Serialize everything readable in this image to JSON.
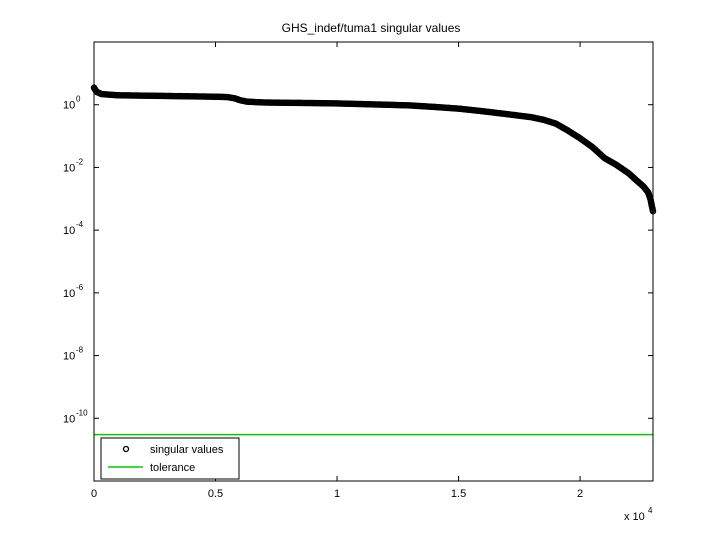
{
  "chart_data": {
    "type": "scatter",
    "title": "GHS_indef/tuma1 singular values",
    "xlabel": "",
    "ylabel": "",
    "y_scale": "log",
    "xlim": [
      0,
      23000
    ],
    "ylim": [
      1e-12,
      100.0
    ],
    "x_ticks": [
      {
        "value": 0,
        "label": "0"
      },
      {
        "value": 5000,
        "label": "0.5"
      },
      {
        "value": 10000,
        "label": "1"
      },
      {
        "value": 15000,
        "label": "1.5"
      },
      {
        "value": 20000,
        "label": "2"
      }
    ],
    "x_multiplier": {
      "base": "x 10",
      "exp": "4"
    },
    "y_ticks": [
      {
        "value": 1,
        "base": "10",
        "exp": "0"
      },
      {
        "value": 0.01,
        "base": "10",
        "exp": "-2"
      },
      {
        "value": 0.0001,
        "base": "10",
        "exp": "-4"
      },
      {
        "value": 1e-06,
        "base": "10",
        "exp": "-6"
      },
      {
        "value": 1e-08,
        "base": "10",
        "exp": "-8"
      },
      {
        "value": 1e-10,
        "base": "10",
        "exp": "-10"
      }
    ],
    "series": [
      {
        "name": "singular values",
        "marker": "circle",
        "color": "#000000",
        "x": [
          0,
          100,
          300,
          600,
          1000,
          2000,
          3000,
          4000,
          5000,
          5500,
          5800,
          6000,
          6300,
          7000,
          8000,
          9000,
          10000,
          11000,
          12000,
          13000,
          14000,
          15000,
          16000,
          17000,
          18000,
          18500,
          19000,
          19500,
          20000,
          20500,
          21000,
          21500,
          22000,
          22300,
          22600,
          22800,
          22900,
          22950,
          23000
        ],
        "y": [
          3.5,
          2.6,
          2.2,
          2.1,
          2.0,
          1.95,
          1.9,
          1.85,
          1.8,
          1.75,
          1.6,
          1.4,
          1.25,
          1.18,
          1.15,
          1.13,
          1.1,
          1.05,
          1.0,
          0.95,
          0.85,
          0.75,
          0.62,
          0.5,
          0.4,
          0.33,
          0.25,
          0.15,
          0.085,
          0.045,
          0.02,
          0.012,
          0.0065,
          0.004,
          0.0025,
          0.0016,
          0.00095,
          0.0006,
          0.0004
        ]
      },
      {
        "name": "tolerance",
        "type": "line",
        "color": "#00cc00",
        "x": [
          0,
          23000
        ],
        "y": [
          3e-11,
          3e-11
        ]
      }
    ],
    "legend": {
      "position": "bottom-left",
      "entries": [
        "singular values",
        "tolerance"
      ]
    },
    "grid": false
  }
}
